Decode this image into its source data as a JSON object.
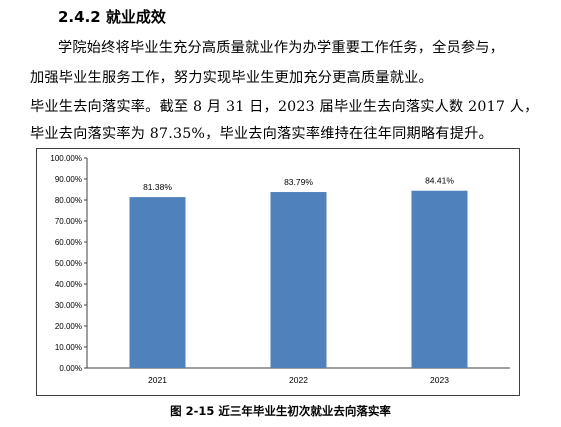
{
  "section_heading": "2.4.2 就业成效",
  "paragraphs": [
    "学院始终将毕业生充分高质量就业作为办学重要工作任务，全员参与，",
    "加强毕业生服务工作，努力实现毕业生更加充分更高质量就业。",
    "毕业生去向落实率。截至 8 月 31 日，2023 届毕业生去向落实人数 2017 人，",
    "毕业去向落实率为 87.35%，毕业去向落实率维持在往年同期略有提升。"
  ],
  "caption": "图 2-15 近三年毕业生初次就业去向落实率",
  "chart_data": {
    "type": "bar",
    "title": "",
    "xlabel": "",
    "ylabel": "",
    "categories": [
      "2021",
      "2022",
      "2023"
    ],
    "values": [
      81.38,
      83.79,
      84.41
    ],
    "data_labels": [
      "81.38%",
      "83.79%",
      "84.41%"
    ],
    "yticks": [
      "0.00%",
      "10.00%",
      "20.00%",
      "30.00%",
      "40.00%",
      "50.00%",
      "60.00%",
      "70.00%",
      "80.00%",
      "90.00%",
      "100.00%"
    ],
    "ylim": [
      0,
      100
    ],
    "grid": false,
    "legend": "none",
    "bar_color": "#4f81bd"
  }
}
